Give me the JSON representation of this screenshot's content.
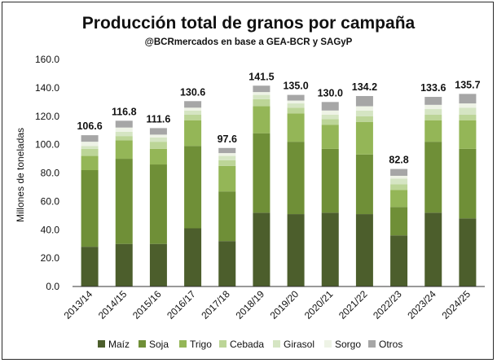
{
  "chart_data": {
    "type": "bar",
    "stacked": true,
    "title": "Producción total de granos por campaña",
    "subtitle": "@BCRmercados en base a GEA-BCR y SAGyP",
    "ylabel": "Millones de toneladas",
    "xlabel": "",
    "ylim": [
      0,
      160
    ],
    "yticks": [
      "0.0",
      "20.0",
      "40.0",
      "60.0",
      "80.0",
      "100.0",
      "120.0",
      "140.0",
      "160.0"
    ],
    "grid": false,
    "legend_position": "bottom",
    "categories": [
      "2013/14",
      "2014/15",
      "2015/16",
      "2016/17",
      "2017/18",
      "2018/19",
      "2019/20",
      "2020/21",
      "2021/22",
      "2022/23",
      "2023/24",
      "2024/25"
    ],
    "totals": [
      "106.6",
      "116.8",
      "111.6",
      "130.6",
      "97.6",
      "141.5",
      "135.0",
      "130.0",
      "134.2",
      "82.8",
      "133.6",
      "135.7"
    ],
    "series": [
      {
        "name": "Maíz",
        "color": "#4c5e2c",
        "values": [
          28,
          30,
          30,
          41,
          32,
          52,
          51,
          52,
          51,
          36,
          52,
          48
        ]
      },
      {
        "name": "Soja",
        "color": "#6f8f37",
        "values": [
          54,
          60,
          56,
          58,
          35,
          56,
          51,
          45,
          42,
          20,
          50,
          49
        ]
      },
      {
        "name": "Trigo",
        "color": "#94b657",
        "values": [
          10,
          13,
          11,
          18,
          18,
          19,
          20,
          17,
          23,
          12,
          15,
          20
        ]
      },
      {
        "name": "Cebada",
        "color": "#bcd597",
        "values": [
          5,
          3,
          5,
          4,
          4,
          5,
          4,
          4,
          4,
          4,
          4,
          4
        ]
      },
      {
        "name": "Girasol",
        "color": "#d5e5c3",
        "values": [
          2,
          3,
          3,
          3,
          3,
          3,
          3,
          3,
          4,
          4,
          4,
          5
        ]
      },
      {
        "name": "Sorgo",
        "color": "#eef3e6",
        "values": [
          3,
          3,
          2,
          2,
          2,
          2,
          2,
          3,
          3,
          2,
          3,
          3
        ]
      },
      {
        "name": "Otros",
        "color": "#a6a6a6",
        "values": [
          4.6,
          4.8,
          4.6,
          4.6,
          3.6,
          4.5,
          4.0,
          6.0,
          7.2,
          4.8,
          5.6,
          6.7
        ]
      }
    ]
  }
}
